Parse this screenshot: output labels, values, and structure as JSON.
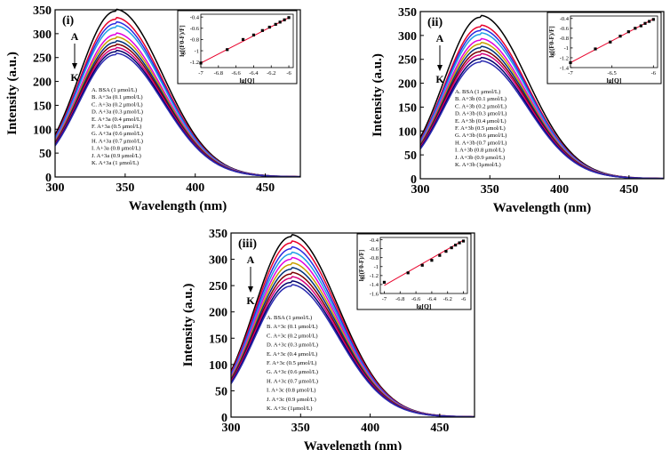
{
  "chart_data": [
    {
      "type": "line",
      "panel_label": "(i)",
      "xlabel": "Wavelength (nm)",
      "ylabel": "Intensity (a.u.)",
      "xlim": [
        300,
        475
      ],
      "ylim": [
        0,
        350
      ],
      "xticks": [
        300,
        350,
        400,
        450
      ],
      "yticks": [
        0,
        50,
        100,
        150,
        200,
        250,
        300,
        350
      ],
      "peak_wavelength": 343,
      "arrow_top": "A",
      "arrow_bottom": "K",
      "series": [
        {
          "name": "A. BSA (1 μmol/L)",
          "peak": 347,
          "color": "#000000"
        },
        {
          "name": "B. A+3a (0.1 μmol/L)",
          "peak": 330,
          "color": "#e8002a"
        },
        {
          "name": "C. A+3a (0.2 μmol/L)",
          "peak": 321,
          "color": "#2a2ae0"
        },
        {
          "name": "D. A+3a (0.3 μmol/L)",
          "peak": 313,
          "color": "#1f9fe6"
        },
        {
          "name": "E. A+3a (0.4 μmol/L)",
          "peak": 298,
          "color": "#e000e0"
        },
        {
          "name": "F. A+3a (0.5 μmol/L)",
          "peak": 290,
          "color": "#c8a000"
        },
        {
          "name": "G. A+3a (0.6 μmol/L)",
          "peak": 282,
          "color": "#00307a"
        },
        {
          "name": "H. A+3a (0.7 μmol/L)",
          "peak": 275,
          "color": "#7a0000"
        },
        {
          "name": "I. A+3a (0.8 μmol/L)",
          "peak": 268,
          "color": "#d6007a"
        },
        {
          "name": "J. A+3a (0.9 μmol/L)",
          "peak": 262,
          "color": "#00006a"
        },
        {
          "name": "K. A+3a (1 μmol/L)",
          "peak": 256,
          "color": "#2a2ab0"
        }
      ],
      "inset": {
        "type": "scatter",
        "xlabel": "lg[Q]",
        "ylabel": "lg[(F0-F)/F]",
        "xlim": [
          -7.0,
          -5.95
        ],
        "ylim": [
          -1.3,
          -0.35
        ],
        "xticks": [
          -7.0,
          -6.8,
          -6.6,
          -6.4,
          -6.2,
          -6.0
        ],
        "yticks": [
          -1.2,
          -1.0,
          -0.8,
          -0.6,
          -0.4
        ],
        "points": [
          [
            -7.0,
            -1.22
          ],
          [
            -6.7,
            -0.98
          ],
          [
            -6.52,
            -0.8
          ],
          [
            -6.4,
            -0.72
          ],
          [
            -6.3,
            -0.64
          ],
          [
            -6.22,
            -0.58
          ],
          [
            -6.15,
            -0.53
          ],
          [
            -6.1,
            -0.49
          ],
          [
            -6.05,
            -0.45
          ],
          [
            -6.0,
            -0.41
          ]
        ],
        "fit": [
          [
            -7.0,
            -1.22
          ],
          [
            -6.0,
            -0.41
          ]
        ],
        "fit_color": "#e8002a"
      }
    },
    {
      "type": "line",
      "panel_label": "(ii)",
      "xlabel": "Wavelength (nm)",
      "ylabel": "Intensity (a.u.)",
      "xlim": [
        300,
        475
      ],
      "ylim": [
        0,
        350
      ],
      "xticks": [
        300,
        350,
        400,
        450
      ],
      "yticks": [
        0,
        50,
        100,
        150,
        200,
        250,
        300,
        350
      ],
      "peak_wavelength": 343,
      "arrow_top": "A",
      "arrow_bottom": "K",
      "series": [
        {
          "name": "A. BSA (1 μmol/L)",
          "peak": 338,
          "color": "#000000"
        },
        {
          "name": "B. A+3b (0.1 μmol/L)",
          "peak": 318,
          "color": "#e8002a"
        },
        {
          "name": "C. A+3b (0.2 μmol/L)",
          "peak": 310,
          "color": "#2a2ae0"
        },
        {
          "name": "D. A+3b (0.3 μmol/L)",
          "peak": 302,
          "color": "#1f9fe6"
        },
        {
          "name": "E. A+3b (0.4 μmol/L)",
          "peak": 290,
          "color": "#e000e0"
        },
        {
          "name": "F. A+3b (0.5 μmol/L)",
          "peak": 282,
          "color": "#c8a000"
        },
        {
          "name": "G. A+3b (0.6 μmol/L)",
          "peak": 274,
          "color": "#00307a"
        },
        {
          "name": "H. A+3b (0.7 μmol/L)",
          "peak": 266,
          "color": "#7a0000"
        },
        {
          "name": "I. A+3b (0.8 μmol/L)",
          "peak": 259,
          "color": "#d6007a"
        },
        {
          "name": "J. A+3b (0.9 μmol/L)",
          "peak": 251,
          "color": "#00006a"
        },
        {
          "name": "K. A+3b (1μmol/L)",
          "peak": 244,
          "color": "#2a2ab0"
        }
      ],
      "inset": {
        "type": "scatter",
        "xlabel": "lg[Q]",
        "ylabel": "lg[(F0-F)/F]",
        "xlim": [
          -7.0,
          -5.95
        ],
        "ylim": [
          -1.4,
          -0.35
        ],
        "xticks": [
          -7.0,
          -6.5,
          -6.0
        ],
        "yticks": [
          -1.4,
          -1.2,
          -1.0,
          -0.8,
          -0.6,
          -0.4
        ],
        "points": [
          [
            -7.0,
            -1.3
          ],
          [
            -6.7,
            -1.02
          ],
          [
            -6.52,
            -0.88
          ],
          [
            -6.4,
            -0.76
          ],
          [
            -6.3,
            -0.67
          ],
          [
            -6.22,
            -0.6
          ],
          [
            -6.15,
            -0.55
          ],
          [
            -6.1,
            -0.5
          ],
          [
            -6.05,
            -0.46
          ],
          [
            -6.0,
            -0.42
          ]
        ],
        "fit": [
          [
            -7.0,
            -1.3
          ],
          [
            -6.0,
            -0.41
          ]
        ],
        "fit_color": "#e8002a"
      }
    },
    {
      "type": "line",
      "panel_label": "(iii)",
      "xlabel": "Wavelength (nm)",
      "ylabel": "Intensity (a.u.)",
      "xlim": [
        300,
        475
      ],
      "ylim": [
        0,
        350
      ],
      "xticks": [
        300,
        350,
        400,
        450
      ],
      "yticks": [
        0,
        50,
        100,
        150,
        200,
        250,
        300,
        350
      ],
      "peak_wavelength": 343,
      "arrow_top": "A",
      "arrow_bottom": "K",
      "series": [
        {
          "name": "A. BSA (1 μmol/L)",
          "peak": 343,
          "color": "#000000"
        },
        {
          "name": "B. A+3c (0.1 μmol/L)",
          "peak": 331,
          "color": "#e8002a"
        },
        {
          "name": "C. A+3c (0.2 μmol/L)",
          "peak": 320,
          "color": "#2a2ae0"
        },
        {
          "name": "D. A+3c (0.3 μmol/L)",
          "peak": 310,
          "color": "#1f9fe6"
        },
        {
          "name": "E. A+3c (0.4 μmol/L)",
          "peak": 300,
          "color": "#e000e0"
        },
        {
          "name": "F. A+3c (0.5 μmol/L)",
          "peak": 290,
          "color": "#c8a000"
        },
        {
          "name": "G. A+3c (0.6 μmol/L)",
          "peak": 281,
          "color": "#00307a"
        },
        {
          "name": "H. A+3c (0.7 μmol/L)",
          "peak": 272,
          "color": "#7a0000"
        },
        {
          "name": "I. A+3c (0.8 μmol/L)",
          "peak": 264,
          "color": "#d6007a"
        },
        {
          "name": "J. A+3c (0.9 μmol/L)",
          "peak": 256,
          "color": "#00006a"
        },
        {
          "name": "K. A+3c (1μmol/L)",
          "peak": 249,
          "color": "#2a2ab0"
        }
      ],
      "inset": {
        "type": "scatter",
        "xlabel": "lg[Q]",
        "ylabel": "lg[(F0-F)/F]",
        "xlim": [
          -7.05,
          -5.95
        ],
        "ylim": [
          -1.6,
          -0.35
        ],
        "xticks": [
          -7.0,
          -6.8,
          -6.6,
          -6.4,
          -6.2,
          -6.0
        ],
        "yticks": [
          -1.6,
          -1.4,
          -1.2,
          -1.0,
          -0.8,
          -0.6,
          -0.4
        ],
        "points": [
          [
            -7.0,
            -1.35
          ],
          [
            -6.7,
            -1.14
          ],
          [
            -6.52,
            -0.97
          ],
          [
            -6.4,
            -0.86
          ],
          [
            -6.3,
            -0.75
          ],
          [
            -6.22,
            -0.66
          ],
          [
            -6.15,
            -0.58
          ],
          [
            -6.1,
            -0.52
          ],
          [
            -6.05,
            -0.47
          ],
          [
            -6.0,
            -0.43
          ]
        ],
        "fit": [
          [
            -7.0,
            -1.42
          ],
          [
            -6.0,
            -0.41
          ]
        ],
        "fit_color": "#e8002a"
      }
    }
  ]
}
